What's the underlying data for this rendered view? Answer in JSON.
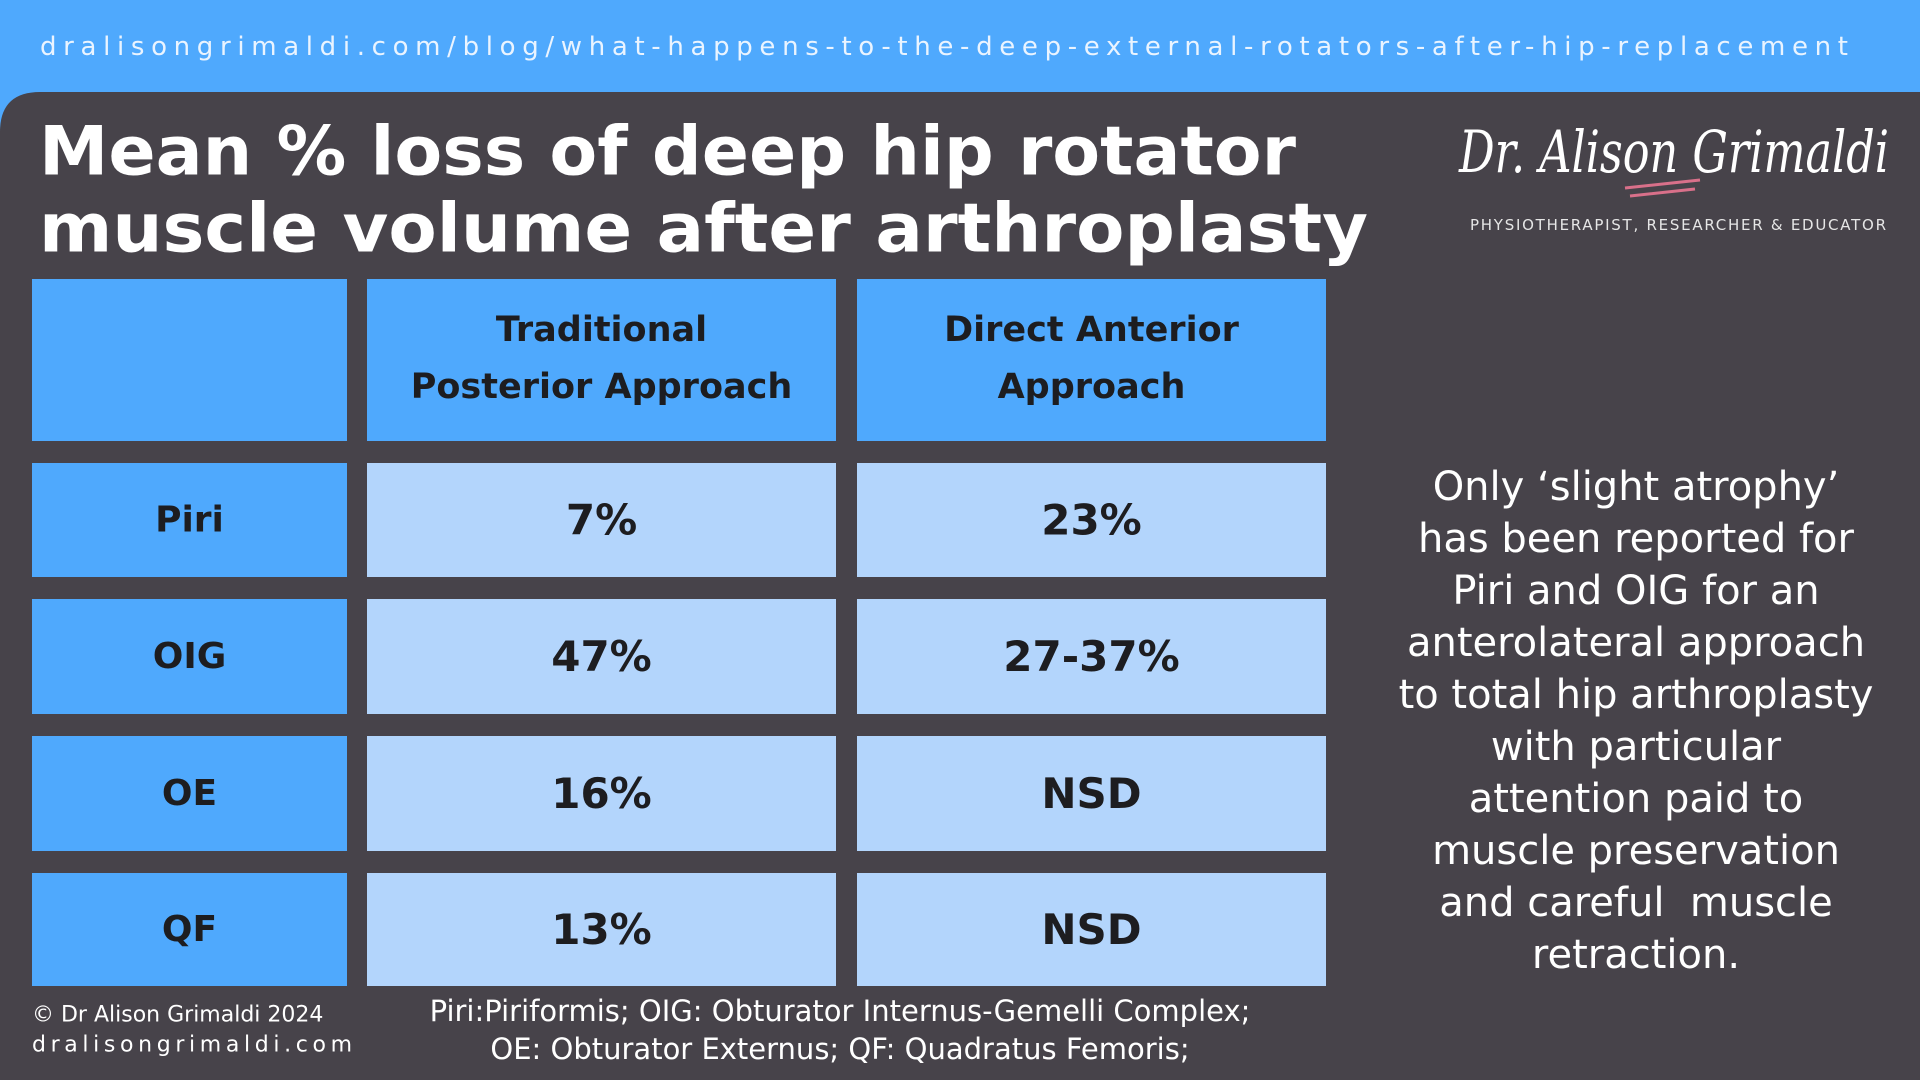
{
  "url": "dralisongrimaldi.com/blog/what-happens-to-the-deep-external-rotators-after-hip-replacement",
  "title_lines": [
    "Mean % loss of deep hip rotator",
    "muscle volume after arthroplasty"
  ],
  "logo": {
    "name": "Dr. Alison Grimaldi",
    "tagline": "PHYSIOTHERAPIST, RESEARCHER & EDUCATOR"
  },
  "table": {
    "header": [
      [
        "Traditional",
        "Posterior Approach"
      ],
      [
        "Direct Anterior",
        "Approach"
      ]
    ],
    "rows": [
      [
        "Piri",
        "7%",
        "23%"
      ],
      [
        "OIG",
        "47%",
        "27-37%"
      ],
      [
        "OE",
        "16%",
        "NSD"
      ],
      [
        "QF",
        "13%",
        "NSD"
      ]
    ]
  },
  "side_note": [
    "Only ‘slight atrophy’",
    "has been reported for",
    "Piri and OIG for an",
    "anterolateral approach",
    "to total hip arthroplasty",
    "with particular",
    "attention paid to",
    "muscle preservation",
    "and careful  muscle",
    "retraction."
  ],
  "footnote": [
    "Piri:Piriformis; OIG: Obturator Internus-Gemelli Complex;",
    "OE: Obturator Externus; QF: Quadratus Femoris;"
  ],
  "copyright": "© Dr Alison Grimaldi 2024",
  "website": "dralisongrimaldi.com"
}
